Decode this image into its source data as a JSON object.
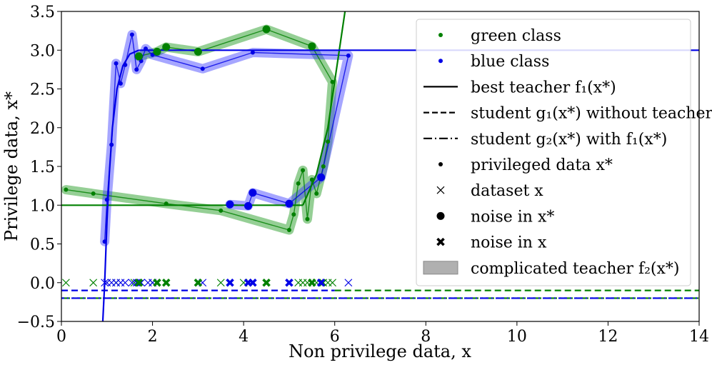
{
  "chart_data": {
    "type": "scatter",
    "title": "",
    "xlabel": "Non privilege data, x",
    "ylabel": "Privilege data, x*",
    "xlim": [
      0,
      14
    ],
    "ylim": [
      -0.5,
      3.5
    ],
    "xticks": [
      "0",
      "2",
      "4",
      "6",
      "8",
      "10",
      "12",
      "14"
    ],
    "yticks": [
      "−0.5",
      "0.0",
      "0.5",
      "1.0",
      "1.5",
      "2.0",
      "2.5",
      "3.0",
      "3.5"
    ],
    "grid": false,
    "legend_position": "top-right",
    "colors": {
      "green": "#008000",
      "blue": "#0000e6",
      "green_band": "#2ca02c",
      "blue_band": "#3a3aff"
    },
    "legend": [
      {
        "marker": "dot-green",
        "label": "green class"
      },
      {
        "marker": "dot-blue",
        "label": "blue class"
      },
      {
        "marker": "solid-line",
        "label": "best teacher f₁(x*)"
      },
      {
        "marker": "dashed-line",
        "label": "student g₁(x*) without teacher"
      },
      {
        "marker": "dashdot-line",
        "label": "student g₂(x*) with f₁(x*)"
      },
      {
        "marker": "small-dot",
        "label": "privileged data x*"
      },
      {
        "marker": "thin-x",
        "label": "dataset x"
      },
      {
        "marker": "big-dot",
        "label": "noise in x*"
      },
      {
        "marker": "bold-x",
        "label": "noise in x"
      },
      {
        "marker": "gray-patch",
        "label": "complicated teacher f₂(x*)"
      }
    ],
    "green_path": [
      [
        0.1,
        1.2
      ],
      [
        0.7,
        1.15
      ],
      [
        2.3,
        1.02
      ],
      [
        3.5,
        0.93
      ],
      [
        5.0,
        0.68
      ],
      [
        5.1,
        0.88
      ],
      [
        5.2,
        1.28
      ],
      [
        5.3,
        1.45
      ],
      [
        5.4,
        0.82
      ],
      [
        5.5,
        1.33
      ],
      [
        5.6,
        1.15
      ],
      [
        5.75,
        1.5
      ],
      [
        5.85,
        1.82
      ],
      [
        5.95,
        2.59
      ],
      [
        5.5,
        3.05
      ],
      [
        4.5,
        3.27
      ],
      [
        3.0,
        2.98
      ],
      [
        2.3,
        3.04
      ],
      [
        2.1,
        2.98
      ],
      [
        1.7,
        2.92
      ]
    ],
    "blue_path": [
      [
        0.95,
        0.53
      ],
      [
        1.0,
        1.07
      ],
      [
        1.1,
        1.78
      ],
      [
        1.2,
        2.83
      ],
      [
        1.3,
        2.57
      ],
      [
        1.4,
        2.81
      ],
      [
        1.55,
        3.2
      ],
      [
        1.65,
        2.75
      ],
      [
        1.75,
        2.86
      ],
      [
        1.85,
        3.02
      ],
      [
        2.0,
        2.94
      ],
      [
        3.1,
        2.76
      ],
      [
        4.2,
        2.97
      ],
      [
        6.3,
        2.93
      ],
      [
        5.7,
        1.36
      ],
      [
        5.0,
        1.02
      ],
      [
        4.2,
        1.16
      ],
      [
        4.1,
        0.99
      ],
      [
        3.7,
        1.01
      ]
    ],
    "green_noise_xstar": [
      [
        1.7,
        2.92
      ],
      [
        2.1,
        2.98
      ],
      [
        2.3,
        3.04
      ],
      [
        3.0,
        2.98
      ],
      [
        4.5,
        3.27
      ],
      [
        5.5,
        3.05
      ]
    ],
    "blue_noise_xstar": [
      [
        3.7,
        1.01
      ],
      [
        4.1,
        0.99
      ],
      [
        4.2,
        1.16
      ],
      [
        5.0,
        1.02
      ],
      [
        5.7,
        1.36
      ]
    ],
    "green_x_thin": [
      0.1,
      0.7,
      1.2,
      1.6,
      2.0,
      3.5,
      4.0,
      5.2,
      5.3,
      5.4,
      5.6,
      5.75,
      5.85,
      5.95
    ],
    "blue_x_thin": [
      0.95,
      1.0,
      1.1,
      1.2,
      1.3,
      1.4,
      1.55,
      1.65,
      1.75,
      1.9,
      2.0,
      3.1,
      6.3
    ],
    "green_x_bold": [
      1.7,
      2.1,
      2.3,
      3.0,
      4.5,
      5.5
    ],
    "blue_x_bold": [
      3.7,
      4.1,
      4.2,
      5.0,
      5.7
    ],
    "teacher_green_line": {
      "horizontal_y": 1.0,
      "x_to": 5.3,
      "curve": [
        [
          5.3,
          1.0
        ],
        [
          5.6,
          1.4
        ],
        [
          5.85,
          2.0
        ],
        [
          6.05,
          2.8
        ],
        [
          6.25,
          3.6
        ]
      ]
    },
    "teacher_blue_line": {
      "curve": [
        [
          0.9,
          -0.6
        ],
        [
          0.95,
          0.0
        ],
        [
          1.0,
          0.8
        ],
        [
          1.05,
          1.4
        ],
        [
          1.12,
          2.0
        ],
        [
          1.22,
          2.5
        ],
        [
          1.35,
          2.8
        ],
        [
          1.5,
          2.95
        ],
        [
          1.7,
          3.0
        ]
      ],
      "horizontal_y": 3.0
    },
    "student1_green_y": -0.1,
    "student1_blue_y": -0.1,
    "student2_green_y": -0.2,
    "student2_blue_y": -0.2,
    "student_split_x": 6.0
  }
}
